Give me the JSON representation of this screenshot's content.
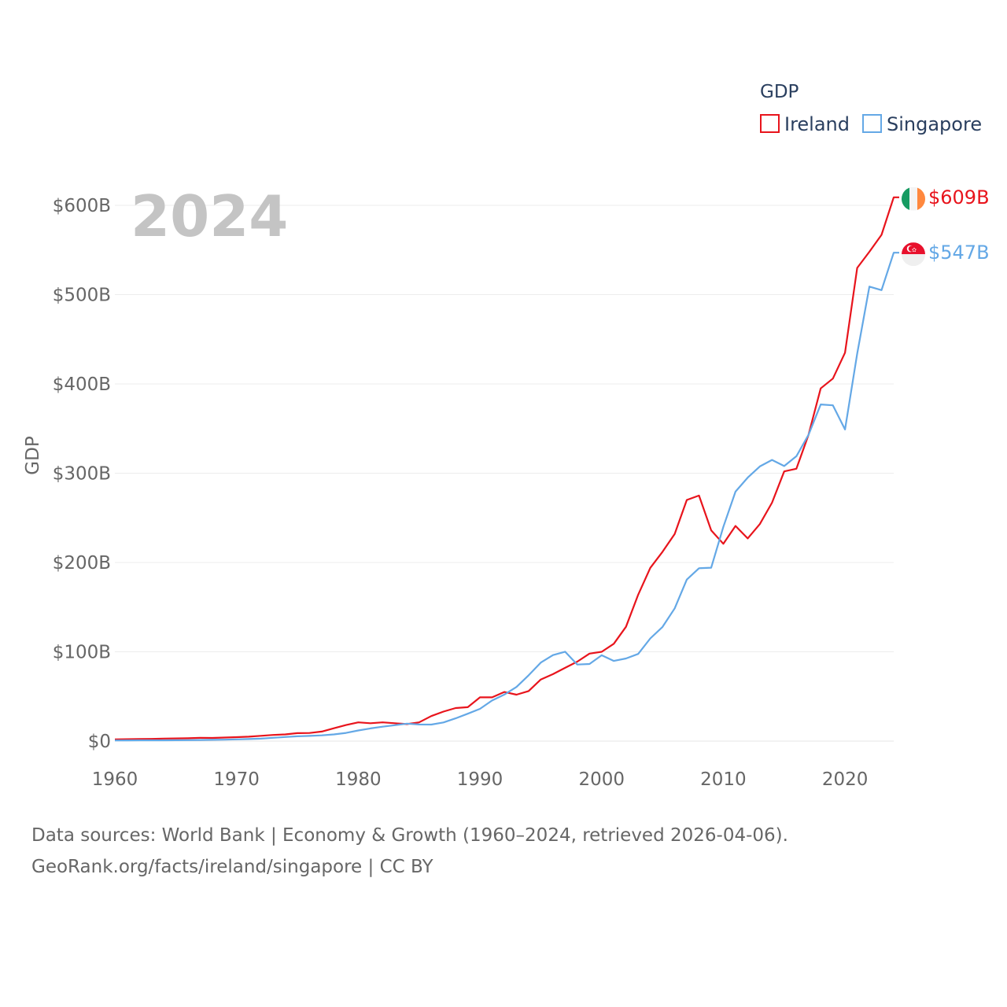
{
  "chart_data": {
    "type": "line",
    "year_label": "2024",
    "ylabel": "GDP",
    "xlim": [
      1960,
      2024
    ],
    "ylim": [
      0,
      600
    ],
    "xticks": [
      {
        "value": 1960,
        "label": "1960"
      },
      {
        "value": 1970,
        "label": "1970"
      },
      {
        "value": 1980,
        "label": "1980"
      },
      {
        "value": 1990,
        "label": "1990"
      },
      {
        "value": 2000,
        "label": "2000"
      },
      {
        "value": 2010,
        "label": "2010"
      },
      {
        "value": 2020,
        "label": "2020"
      }
    ],
    "yticks": [
      {
        "value": 0,
        "label": "$0"
      },
      {
        "value": 100,
        "label": "$100B"
      },
      {
        "value": 200,
        "label": "$200B"
      },
      {
        "value": 300,
        "label": "$300B"
      },
      {
        "value": 400,
        "label": "$400B"
      },
      {
        "value": 500,
        "label": "$500B"
      },
      {
        "value": 600,
        "label": "$600B"
      }
    ],
    "legend": {
      "title": "GDP",
      "position": "top-right"
    },
    "series": [
      {
        "name": "Ireland",
        "color": "#e8141c",
        "end_label": "$609B",
        "flag_icon": "ireland-flag-icon",
        "x": [
          1960,
          1961,
          1962,
          1963,
          1964,
          1965,
          1966,
          1967,
          1968,
          1969,
          1970,
          1971,
          1972,
          1973,
          1974,
          1975,
          1976,
          1977,
          1978,
          1979,
          1980,
          1981,
          1982,
          1983,
          1984,
          1985,
          1986,
          1987,
          1988,
          1989,
          1990,
          1991,
          1992,
          1993,
          1994,
          1995,
          1996,
          1997,
          1998,
          1999,
          2000,
          2001,
          2002,
          2003,
          2004,
          2005,
          2006,
          2007,
          2008,
          2009,
          2010,
          2011,
          2012,
          2013,
          2014,
          2015,
          2016,
          2017,
          2018,
          2019,
          2020,
          2021,
          2022,
          2023,
          2024
        ],
        "values": [
          1.9,
          2.1,
          2.3,
          2.5,
          2.8,
          3.0,
          3.2,
          3.6,
          3.5,
          4.0,
          4.4,
          4.9,
          5.9,
          6.9,
          7.5,
          8.9,
          9.1,
          10.7,
          14.4,
          18.0,
          21.0,
          20.0,
          21.0,
          20.0,
          19.0,
          21.0,
          28.0,
          33.0,
          37.0,
          38.0,
          49.0,
          49.0,
          55.0,
          52.0,
          56.0,
          69.0,
          75.0,
          82.0,
          89.0,
          98.0,
          100.0,
          109.0,
          128.0,
          164.0,
          194.0,
          212.0,
          232.0,
          270.0,
          275.0,
          236.0,
          221.0,
          241.0,
          227.0,
          243.0,
          267.0,
          302.0,
          305.0,
          343.0,
          395.0,
          406.0,
          435.0,
          530.0,
          548.0,
          567.0,
          609.0
        ]
      },
      {
        "name": "Singapore",
        "color": "#64a8e6",
        "end_label": "$547B",
        "flag_icon": "singapore-flag-icon",
        "x": [
          1960,
          1961,
          1962,
          1963,
          1964,
          1965,
          1966,
          1967,
          1968,
          1969,
          1970,
          1971,
          1972,
          1973,
          1974,
          1975,
          1976,
          1977,
          1978,
          1979,
          1980,
          1981,
          1982,
          1983,
          1984,
          1985,
          1986,
          1987,
          1988,
          1989,
          1990,
          1991,
          1992,
          1993,
          1994,
          1995,
          1996,
          1997,
          1998,
          1999,
          2000,
          2001,
          2002,
          2003,
          2004,
          2005,
          2006,
          2007,
          2008,
          2009,
          2010,
          2011,
          2012,
          2013,
          2014,
          2015,
          2016,
          2017,
          2018,
          2019,
          2020,
          2021,
          2022,
          2023,
          2024
        ],
        "values": [
          0.7,
          0.8,
          0.9,
          0.9,
          0.9,
          1.0,
          1.1,
          1.2,
          1.4,
          1.6,
          1.9,
          2.3,
          2.7,
          3.7,
          4.6,
          5.4,
          5.8,
          6.4,
          7.5,
          9.2,
          11.9,
          14.2,
          16.1,
          17.8,
          19.6,
          18.6,
          18.5,
          20.9,
          25.5,
          30.7,
          36.1,
          45.5,
          52.1,
          60.6,
          73.7,
          87.9,
          96.3,
          100.1,
          85.7,
          86.3,
          96.1,
          89.8,
          92.5,
          97.6,
          115.0,
          127.8,
          148.6,
          180.9,
          193.6,
          194.2,
          239.8,
          279.4,
          295.1,
          307.6,
          314.9,
          308.0,
          319.0,
          343.0,
          377.0,
          376.0,
          349.0,
          434.0,
          509.0,
          505.0,
          547.0
        ]
      }
    ]
  },
  "source": {
    "line1": "Data sources: World Bank | Economy & Growth (1960–2024, retrieved 2026-04-06).",
    "line2": "GeoRank.org/facts/ireland/singapore | CC BY"
  }
}
